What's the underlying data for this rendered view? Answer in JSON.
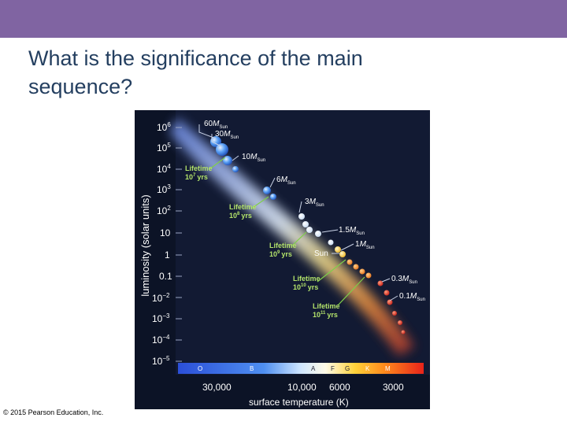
{
  "slide": {
    "title_line1": "What is the significance of the main",
    "title_line2": "sequence?",
    "copyright": "© 2015 Pearson Education, Inc.",
    "accent_color": "#8064a2",
    "title_color": "#243f60"
  },
  "diagram": {
    "y_axis_title": "luminosity (solar units)",
    "x_axis_title": "surface temperature (K)",
    "y_ticks": [
      {
        "base": "10",
        "exp": "6"
      },
      {
        "base": "10",
        "exp": "5"
      },
      {
        "base": "10",
        "exp": "4"
      },
      {
        "base": "10",
        "exp": "3"
      },
      {
        "base": "10",
        "exp": "2"
      },
      {
        "base": "10",
        "exp": ""
      },
      {
        "base": "1",
        "exp": ""
      },
      {
        "base": "0.1",
        "exp": ""
      },
      {
        "base": "10",
        "exp": "−2"
      },
      {
        "base": "10",
        "exp": "−3"
      },
      {
        "base": "10",
        "exp": "−4"
      },
      {
        "base": "10",
        "exp": "−5"
      }
    ],
    "x_ticks": [
      "30,000",
      "10,000",
      "6000",
      "3000"
    ],
    "spectral_classes": [
      "O",
      "B",
      "A",
      "F",
      "G",
      "K",
      "M"
    ],
    "mass_labels": [
      {
        "value": "60",
        "M": "M",
        "sub": "Sun"
      },
      {
        "value": "30",
        "M": "M",
        "sub": "Sun"
      },
      {
        "value": "10",
        "M": "M",
        "sub": "Sun"
      },
      {
        "value": "6",
        "M": "M",
        "sub": "Sun"
      },
      {
        "value": "3",
        "M": "M",
        "sub": "Sun"
      },
      {
        "value": "1.5",
        "M": "M",
        "sub": "Sun"
      },
      {
        "value": "1",
        "M": "M",
        "sub": "Sun"
      },
      {
        "value": "0.3",
        "M": "M",
        "sub": "Sun"
      },
      {
        "value": "0.1",
        "M": "M",
        "sub": "Sun"
      }
    ],
    "sun_label": "Sun",
    "lifetimes": [
      {
        "word": "Lifetime",
        "base": "10",
        "exp": "7",
        "unit": "yrs"
      },
      {
        "word": "Lifetime",
        "base": "10",
        "exp": "8",
        "unit": "yrs"
      },
      {
        "word": "Lifetime",
        "base": "10",
        "exp": "9",
        "unit": "yrs"
      },
      {
        "word": "Lifetime",
        "base": "10",
        "exp": "10",
        "unit": "yrs"
      },
      {
        "word": "Lifetime",
        "base": "10",
        "exp": "11",
        "unit": "yrs"
      }
    ],
    "colors": {
      "background": "#0c1326",
      "panel": "#16203a",
      "lifetime_text": "#b3e36b",
      "leader_line": "#7fcf4a"
    }
  }
}
